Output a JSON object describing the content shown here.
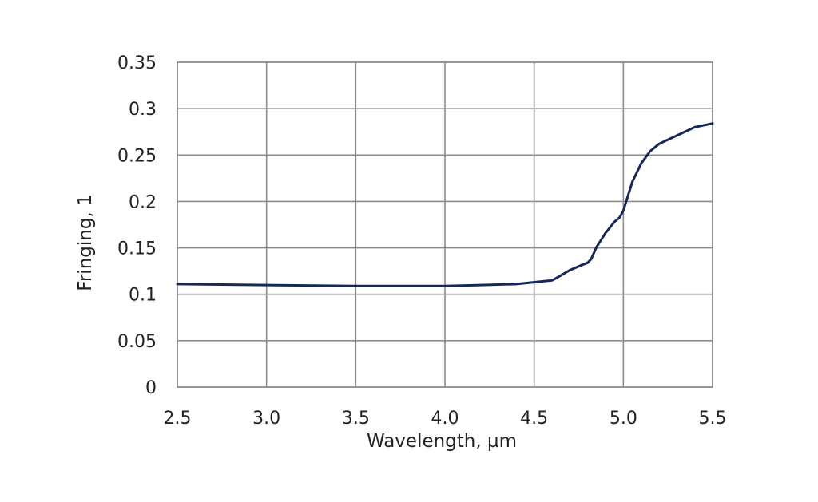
{
  "chart_data": {
    "type": "line",
    "xlabel": "Wavelength, µm",
    "ylabel": "Fringing, 1",
    "xlim": [
      2.5,
      5.5
    ],
    "ylim": [
      0,
      0.35
    ],
    "x_ticks": [
      "2.5",
      "3.0",
      "3.5",
      "4.0",
      "4.5",
      "5.0",
      "5.5"
    ],
    "y_ticks": [
      "0",
      "0.05",
      "0.1",
      "0.15",
      "0.2",
      "0.25",
      "0.3",
      "0.35"
    ],
    "grid": true,
    "line_color": "#14285a",
    "grid_color": "#8c8c8c",
    "series": [
      {
        "x": [
          2.5,
          3.0,
          3.5,
          4.0,
          4.2,
          4.4,
          4.6,
          4.62,
          4.7,
          4.76,
          4.8,
          4.82,
          4.85,
          4.9,
          4.95,
          4.98,
          5.0,
          5.05,
          5.1,
          5.15,
          5.2,
          5.3,
          5.4,
          5.5
        ],
        "y": [
          0.111,
          0.11,
          0.109,
          0.109,
          0.11,
          0.111,
          0.115,
          0.117,
          0.126,
          0.131,
          0.134,
          0.138,
          0.151,
          0.166,
          0.178,
          0.183,
          0.19,
          0.221,
          0.241,
          0.254,
          0.262,
          0.271,
          0.28,
          0.284
        ]
      }
    ]
  }
}
